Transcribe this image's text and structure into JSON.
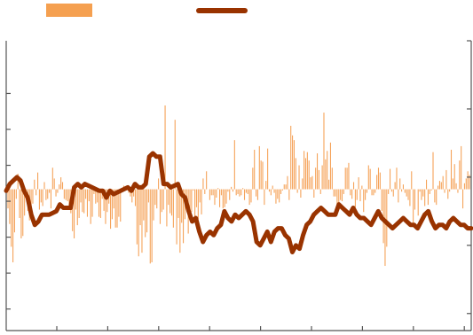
{
  "chart_data": {
    "type": "bar+line",
    "title": "",
    "xlabel": "",
    "ylabel": "",
    "legend": {
      "placement": "top",
      "entries": [
        {
          "symbol": "bar",
          "label": ""
        },
        {
          "symbol": "line",
          "label": ""
        }
      ]
    },
    "x_ticks": 9,
    "grid": false,
    "axes": {
      "left": {
        "ylim": [
          -11.8,
          12.4
        ],
        "ticks": [
          -10,
          -7,
          -4,
          -1,
          2,
          5,
          8
        ]
      },
      "right": {
        "ylim": [
          -2.25,
          2.0
        ],
        "ticks": [
          -2,
          -1,
          0,
          1,
          2
        ]
      }
    },
    "bar_axis": "left",
    "line_axis": "right",
    "x_range": [
      0,
      260
    ],
    "bar_values": [
      -1.6,
      -2.9,
      -4.8,
      -6.1,
      -3.6,
      -0.8,
      1.3,
      -2.4,
      -4.1,
      -3.9,
      -2.2,
      -0.6,
      -1.8,
      -2.6,
      -2.3,
      -1.2,
      0.8,
      -0.5,
      1.4,
      -1.7,
      -1.1,
      -1.4,
      0.6,
      -0.9,
      -0.8,
      -0.3,
      -1.6,
      1.8,
      0.9,
      -0.6,
      -0.3,
      0.4,
      1.0,
      0.6,
      -0.8,
      -0.9,
      -1.0,
      -1.4,
      -2.0,
      -3.5,
      -4.1,
      -1.7,
      -3.0,
      -2.4,
      -1.1,
      -1.9,
      -2.0,
      -0.8,
      -2.3,
      -1.0,
      -2.9,
      -2.3,
      -0.4,
      -1.2,
      -1.1,
      -2.3,
      -2.4,
      -0.8,
      -1.8,
      -2.9,
      -1.9,
      -1.2,
      -3.3,
      -2.5,
      -1.6,
      -3.2,
      -3.2,
      -2.3,
      -2.7,
      -0.1,
      0.3,
      -0.1,
      0.2,
      -0.3,
      -0.6,
      -1.1,
      -0.6,
      -1.4,
      -4.6,
      -5.6,
      -3.0,
      -5.3,
      -2.6,
      -4.0,
      -3.6,
      -1.1,
      -6.2,
      -6.1,
      -2.6,
      -1.3,
      -1.6,
      0.9,
      -2.9,
      -1.9,
      -1.7,
      7.0,
      -3.1,
      -1.3,
      -2.0,
      -2.2,
      -3.2,
      5.8,
      -4.6,
      -2.4,
      -5.3,
      -2.8,
      -4.5,
      -2.5,
      -0.9,
      -3.7,
      -1.8,
      -1.9,
      -0.1,
      -2.3,
      -1.5,
      -2.5,
      -1.1,
      -2.1,
      0.9,
      -0.4,
      1.5,
      0.0,
      -0.9,
      -0.5,
      -0.5,
      -1.3,
      -0.7,
      0.1,
      -1.5,
      -0.5,
      -1.6,
      -1.5,
      -1.2,
      -0.2,
      -0.9,
      0.2,
      -0.2,
      4.1,
      -0.5,
      -0.4,
      -0.6,
      -0.5,
      0.1,
      -0.9,
      -0.3,
      -0.4,
      -1.3,
      -1.1,
      1.8,
      3.3,
      -0.6,
      -0.9,
      3.6,
      2.4,
      2.3,
      -1.3,
      0.7,
      3.4,
      -0.2,
      -0.5,
      0.3,
      -0.3,
      -1.2,
      -0.8,
      -1.1,
      -0.4,
      -0.1,
      0.4,
      0.4,
      1.1,
      -0.9,
      5.3,
      4.5,
      4.1,
      2.6,
      -0.3,
      2.0,
      -0.7,
      0.9,
      3.2,
      2.6,
      3.1,
      2.4,
      1.0,
      1.1,
      -0.7,
      1.8,
      3.0,
      1.6,
      -0.4,
      2.0,
      6.4,
      2.5,
      3.2,
      0.8,
      3.9,
      1.8,
      -0.6,
      -0.6,
      -1.3,
      -1.6,
      -0.9,
      -1.0,
      -0.4,
      1.8,
      1.8,
      2.2,
      -0.5,
      -0.8,
      0.6,
      -1.5,
      -0.9,
      1.0,
      -1.0,
      0.3,
      -1.9,
      -0.9,
      -0.3,
      2.0,
      1.7,
      -0.5,
      -0.5,
      -0.3,
      1.2,
      1.8,
      1.4,
      -1.8,
      -4.5,
      -6.4,
      -4.8,
      -0.4,
      1.7,
      -0.2,
      -0.6,
      0.6,
      1.8,
      -1.1,
      0.9,
      -0.2,
      0.4,
      -0.3,
      -0.6,
      -0.9,
      -1.4,
      1.5,
      -3.0,
      -1.7,
      0.0,
      -2.2,
      -0.2,
      -0.9,
      -0.6,
      -1.4,
      0.8,
      -1.3,
      -0.4,
      -0.1,
      3.1,
      -1.1,
      -1.3,
      0.3,
      0.7,
      0.6,
      1.1,
      -0.3,
      1.6,
      -0.8,
      -0.2,
      3.3,
      0.9,
      2.1,
      0.5,
      -0.3,
      2.4,
      3.6,
      -1.6,
      0.5,
      0.9,
      1.5,
      1.2
    ],
    "line_points": [
      [
        0,
        -0.2
      ],
      [
        2,
        -0.1
      ],
      [
        4,
        -0.05
      ],
      [
        6,
        0.0
      ],
      [
        8,
        -0.05
      ],
      [
        10,
        -0.2
      ],
      [
        12,
        -0.3
      ],
      [
        14,
        -0.55
      ],
      [
        16,
        -0.7
      ],
      [
        18,
        -0.65
      ],
      [
        20,
        -0.55
      ],
      [
        24,
        -0.55
      ],
      [
        28,
        -0.5
      ],
      [
        30,
        -0.4
      ],
      [
        32,
        -0.45
      ],
      [
        36,
        -0.45
      ],
      [
        38,
        -0.15
      ],
      [
        40,
        -0.1
      ],
      [
        42,
        -0.15
      ],
      [
        44,
        -0.1
      ],
      [
        48,
        -0.15
      ],
      [
        52,
        -0.2
      ],
      [
        54,
        -0.2
      ],
      [
        56,
        -0.3
      ],
      [
        58,
        -0.2
      ],
      [
        60,
        -0.25
      ],
      [
        64,
        -0.2
      ],
      [
        68,
        -0.15
      ],
      [
        70,
        -0.2
      ],
      [
        72,
        -0.1
      ],
      [
        74,
        -0.15
      ],
      [
        76,
        -0.15
      ],
      [
        78,
        -0.1
      ],
      [
        80,
        0.3
      ],
      [
        82,
        0.35
      ],
      [
        84,
        0.3
      ],
      [
        86,
        0.3
      ],
      [
        88,
        -0.1
      ],
      [
        90,
        -0.1
      ],
      [
        92,
        -0.15
      ],
      [
        96,
        -0.1
      ],
      [
        98,
        -0.25
      ],
      [
        100,
        -0.3
      ],
      [
        102,
        -0.5
      ],
      [
        104,
        -0.65
      ],
      [
        106,
        -0.6
      ],
      [
        108,
        -0.8
      ],
      [
        110,
        -0.95
      ],
      [
        112,
        -0.85
      ],
      [
        114,
        -0.8
      ],
      [
        116,
        -0.85
      ],
      [
        118,
        -0.75
      ],
      [
        120,
        -0.7
      ],
      [
        122,
        -0.5
      ],
      [
        124,
        -0.6
      ],
      [
        126,
        -0.65
      ],
      [
        128,
        -0.55
      ],
      [
        130,
        -0.6
      ],
      [
        132,
        -0.55
      ],
      [
        134,
        -0.5
      ],
      [
        136,
        -0.55
      ],
      [
        138,
        -0.65
      ],
      [
        140,
        -0.95
      ],
      [
        142,
        -1.0
      ],
      [
        144,
        -0.9
      ],
      [
        146,
        -0.8
      ],
      [
        148,
        -0.95
      ],
      [
        150,
        -0.8
      ],
      [
        152,
        -0.75
      ],
      [
        154,
        -0.75
      ],
      [
        156,
        -0.85
      ],
      [
        158,
        -0.9
      ],
      [
        160,
        -1.1
      ],
      [
        162,
        -1.0
      ],
      [
        164,
        -1.05
      ],
      [
        166,
        -0.85
      ],
      [
        168,
        -0.7
      ],
      [
        170,
        -0.65
      ],
      [
        172,
        -0.55
      ],
      [
        174,
        -0.5
      ],
      [
        176,
        -0.45
      ],
      [
        178,
        -0.5
      ],
      [
        180,
        -0.55
      ],
      [
        184,
        -0.55
      ],
      [
        186,
        -0.4
      ],
      [
        188,
        -0.45
      ],
      [
        190,
        -0.5
      ],
      [
        192,
        -0.55
      ],
      [
        194,
        -0.45
      ],
      [
        196,
        -0.55
      ],
      [
        198,
        -0.6
      ],
      [
        200,
        -0.6
      ],
      [
        202,
        -0.65
      ],
      [
        204,
        -0.7
      ],
      [
        206,
        -0.6
      ],
      [
        208,
        -0.5
      ],
      [
        210,
        -0.6
      ],
      [
        212,
        -0.65
      ],
      [
        214,
        -0.7
      ],
      [
        216,
        -0.75
      ],
      [
        218,
        -0.7
      ],
      [
        220,
        -0.65
      ],
      [
        222,
        -0.6
      ],
      [
        224,
        -0.65
      ],
      [
        226,
        -0.7
      ],
      [
        228,
        -0.7
      ],
      [
        230,
        -0.75
      ],
      [
        232,
        -0.65
      ],
      [
        234,
        -0.55
      ],
      [
        236,
        -0.5
      ],
      [
        238,
        -0.65
      ],
      [
        240,
        -0.75
      ],
      [
        242,
        -0.7
      ],
      [
        244,
        -0.7
      ],
      [
        246,
        -0.75
      ],
      [
        248,
        -0.65
      ],
      [
        250,
        -0.6
      ],
      [
        252,
        -0.65
      ],
      [
        254,
        -0.7
      ],
      [
        256,
        -0.7
      ],
      [
        258,
        -0.75
      ],
      [
        260,
        -0.75
      ]
    ],
    "colors": {
      "bars": "#f5a35a",
      "legend_bar": "#f5a050",
      "line": "#993300",
      "axes": "#555555"
    }
  }
}
